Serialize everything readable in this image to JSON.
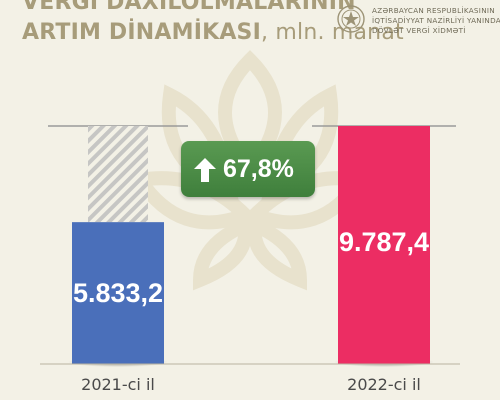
{
  "header": {
    "title_line1": "VERGİ DAXİLOLMALARININ",
    "title_line2_main": "ARTIM DİNAMİKASI",
    "title_line2_unit": ", mln. manat"
  },
  "logo": {
    "icon": "state-emblem-icon",
    "line1": "AZƏRBAYCAN RESPUBLİKASININ",
    "line2": "İQTİSADİYYAT NAZİRLİYİ YANINDA",
    "line3": "DÖVLƏT VERGİ XİDMƏTİ"
  },
  "growth": {
    "icon": "arrow-up-icon",
    "label": "67,8%"
  },
  "colors": {
    "bar_2021": "#4a6fba",
    "bar_2022": "#ec2d63",
    "badge": "#4c8c48",
    "hatch": "#c6c6c4"
  },
  "chart_data": {
    "type": "bar",
    "categories": [
      "2021-ci il",
      "2022-ci il"
    ],
    "values": [
      5833.2,
      9787.4
    ],
    "value_labels": [
      "5.833,2",
      "9.787,4"
    ],
    "ylim": [
      0,
      9787.4
    ],
    "grid": false,
    "legend": "none"
  }
}
